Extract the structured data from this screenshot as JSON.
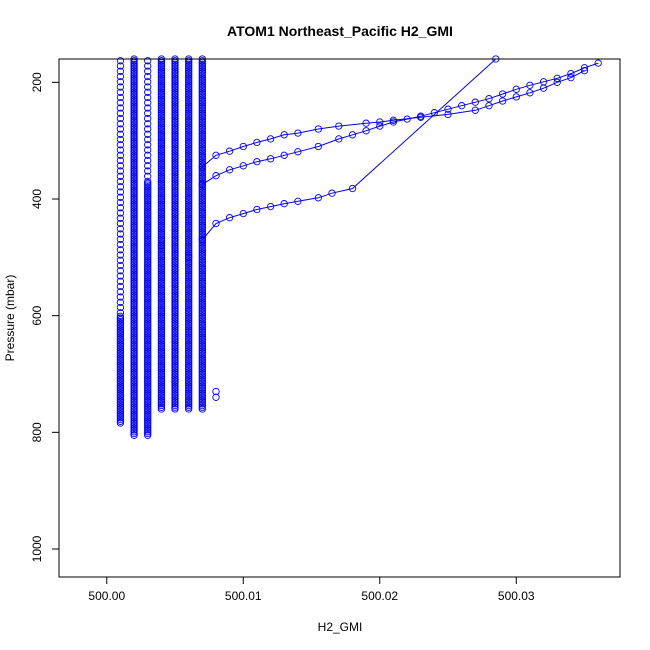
{
  "chart_data": {
    "type": "scatter",
    "title": "ATOM1 Northeast_Pacific H2_GMI",
    "xlabel": "H2_GMI",
    "ylabel": "Pressure (mbar)",
    "xlim": [
      499.9965,
      500.0376
    ],
    "ylim": [
      1048,
      160
    ],
    "y_reversed": true,
    "grid": false,
    "marker": "open-circle",
    "color": "#0000ff",
    "x_ticks": [
      {
        "value": 500.0,
        "label": "500.00"
      },
      {
        "value": 500.01,
        "label": "500.01"
      },
      {
        "value": 500.02,
        "label": "500.02"
      },
      {
        "value": 500.03,
        "label": "500.03"
      }
    ],
    "y_ticks": [
      {
        "value": 200,
        "label": "200"
      },
      {
        "value": 400,
        "label": "400"
      },
      {
        "value": 600,
        "label": "600"
      },
      {
        "value": 800,
        "label": "800"
      },
      {
        "value": 1000,
        "label": "1000"
      }
    ],
    "columns": [
      {
        "x": 500.001,
        "p_min": 160,
        "p_max": 785,
        "dense_from": 600
      },
      {
        "x": 500.002,
        "p_min": 160,
        "p_max": 805,
        "dense_from": 160
      },
      {
        "x": 500.003,
        "p_min": 160,
        "p_max": 805,
        "dense_from": 370
      },
      {
        "x": 500.004,
        "p_min": 160,
        "p_max": 760,
        "dense_from": 160
      },
      {
        "x": 500.005,
        "p_min": 160,
        "p_max": 760,
        "dense_from": 160
      },
      {
        "x": 500.006,
        "p_min": 160,
        "p_max": 760,
        "dense_from": 160
      },
      {
        "x": 500.007,
        "p_min": 160,
        "p_max": 760,
        "dense_from": 160
      }
    ],
    "series": [
      {
        "points": [
          [
            500.007,
            470
          ],
          [
            500.008,
            442
          ],
          [
            500.009,
            432
          ],
          [
            500.01,
            425
          ],
          [
            500.011,
            418
          ],
          [
            500.012,
            413
          ],
          [
            500.013,
            408
          ],
          [
            500.014,
            404
          ],
          [
            500.0155,
            398
          ],
          [
            500.0165,
            390
          ],
          [
            500.018,
            382
          ],
          [
            500.0285,
            160
          ]
        ]
      },
      {
        "points": [
          [
            500.007,
            375
          ],
          [
            500.008,
            360
          ],
          [
            500.009,
            350
          ],
          [
            500.01,
            343
          ],
          [
            500.011,
            336
          ],
          [
            500.012,
            331
          ],
          [
            500.013,
            325
          ],
          [
            500.014,
            319
          ],
          [
            500.0155,
            310
          ],
          [
            500.017,
            297
          ],
          [
            500.018,
            290
          ],
          [
            500.019,
            283
          ],
          [
            500.02,
            275
          ],
          [
            500.021,
            268
          ],
          [
            500.022,
            263
          ],
          [
            500.023,
            258
          ],
          [
            500.024,
            252
          ],
          [
            500.025,
            246
          ],
          [
            500.026,
            240
          ],
          [
            500.027,
            234
          ],
          [
            500.028,
            228
          ],
          [
            500.029,
            220
          ],
          [
            500.03,
            212
          ],
          [
            500.031,
            205
          ],
          [
            500.032,
            199
          ],
          [
            500.033,
            193
          ],
          [
            500.034,
            185
          ],
          [
            500.035,
            175
          ],
          [
            500.036,
            167
          ]
        ]
      },
      {
        "points": [
          [
            500.007,
            345
          ],
          [
            500.008,
            325
          ],
          [
            500.009,
            318
          ],
          [
            500.01,
            310
          ],
          [
            500.011,
            303
          ],
          [
            500.012,
            297
          ],
          [
            500.013,
            290
          ],
          [
            500.014,
            287
          ],
          [
            500.0155,
            280
          ],
          [
            500.017,
            275
          ],
          [
            500.019,
            270
          ],
          [
            500.02,
            268
          ],
          [
            500.021,
            265
          ],
          [
            500.023,
            260
          ],
          [
            500.025,
            255
          ],
          [
            500.027,
            248
          ],
          [
            500.028,
            240
          ],
          [
            500.029,
            232
          ],
          [
            500.03,
            225
          ],
          [
            500.031,
            218
          ],
          [
            500.032,
            210
          ],
          [
            500.033,
            200
          ],
          [
            500.034,
            192
          ],
          [
            500.035,
            180
          ]
        ]
      }
    ],
    "extra_points": [
      [
        500.008,
        730
      ],
      [
        500.008,
        740
      ],
      [
        500.004,
        480
      ],
      [
        500.006,
        500
      ]
    ]
  }
}
